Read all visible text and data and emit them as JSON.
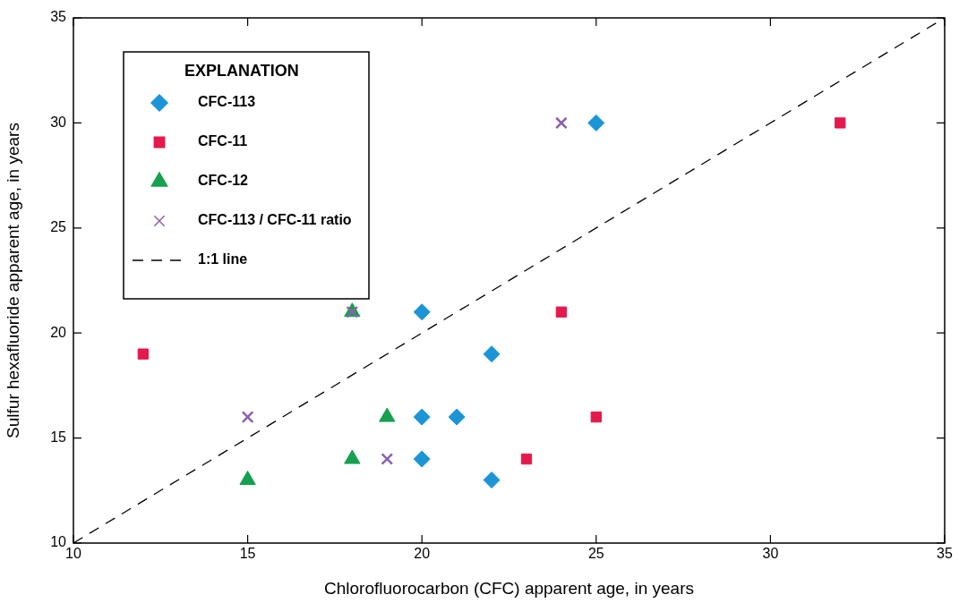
{
  "chart_data": {
    "type": "scatter",
    "xlabel": "Chlorofluorocarbon (CFC) apparent age, in years",
    "ylabel": "Sulfur hexafluoride apparent age, in years",
    "legend_title": "EXPLANATION",
    "legend": "top left",
    "grid": false,
    "xlim": [
      10,
      35
    ],
    "xticks": [
      10,
      15,
      20,
      25,
      30,
      35
    ],
    "ylim": [
      10,
      35
    ],
    "yticks": [
      10,
      15,
      20,
      25,
      30,
      35
    ],
    "series": [
      {
        "name": "CFC-113",
        "color": "#1b95d6",
        "marker": "diamond",
        "x": [
          25,
          20,
          22,
          20,
          21,
          20,
          22
        ],
        "values": [
          30,
          21,
          19,
          16,
          16,
          14,
          13
        ]
      },
      {
        "name": "CFC-11",
        "color": "#e5194b",
        "marker": "square",
        "x": [
          32,
          24,
          12,
          25,
          23
        ],
        "values": [
          30,
          21,
          19,
          16,
          14
        ]
      },
      {
        "name": "CFC-12",
        "color": "#16a04f",
        "marker": "triangle",
        "x": [
          18,
          19,
          18,
          15
        ],
        "values": [
          21,
          16,
          14,
          13
        ]
      },
      {
        "name": "CFC-113 / CFC-11 ratio",
        "color": "#8a62ad",
        "marker": "cross",
        "x": [
          24,
          18,
          15,
          19
        ],
        "values": [
          30,
          21,
          16,
          14
        ]
      },
      {
        "name": "1:1 line",
        "type": "line",
        "color": "#000000",
        "marker": "none",
        "line_style": "dashed",
        "x": [
          10,
          35
        ],
        "values": [
          10,
          35
        ]
      }
    ]
  }
}
